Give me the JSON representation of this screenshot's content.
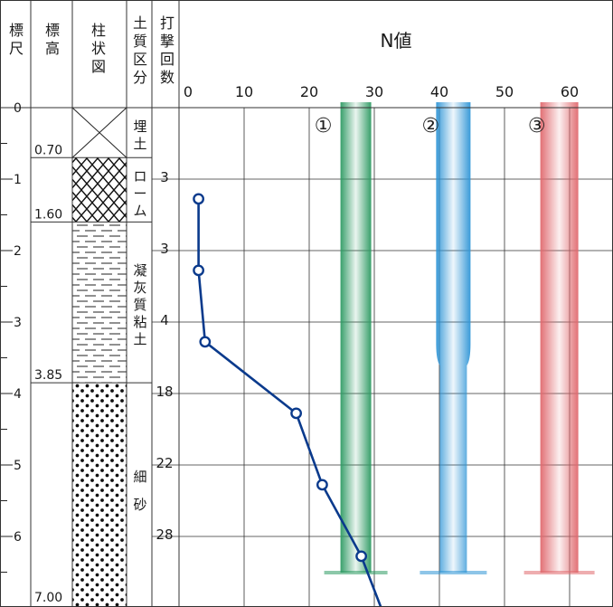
{
  "headers": {
    "scale": [
      "標",
      "尺"
    ],
    "elevation": [
      "標",
      "高"
    ],
    "column": [
      "柱",
      "状",
      "図"
    ],
    "soil_class": [
      "土",
      "質",
      "区",
      "分"
    ],
    "blow_count": [
      "打",
      "撃",
      "回",
      "数"
    ],
    "n_value": "N値"
  },
  "depth_scale": {
    "labels": [
      "0",
      "1",
      "2",
      "3",
      "4",
      "5",
      "6"
    ]
  },
  "elevations": [
    "0.70",
    "1.60",
    "3.85",
    "7.00"
  ],
  "soil_types": [
    {
      "name": "埋土",
      "chars": [
        "埋",
        "土"
      ],
      "pattern": "cross",
      "top": 0,
      "bottom": 0.7
    },
    {
      "name": "ローム",
      "chars": [
        "ロ",
        "ー",
        "ム"
      ],
      "pattern": "diamond",
      "top": 0.7,
      "bottom": 1.6
    },
    {
      "name": "凝灰質粘土",
      "chars": [
        "凝",
        "灰",
        "質",
        "粘",
        "土"
      ],
      "pattern": "dash",
      "top": 1.6,
      "bottom": 3.85
    },
    {
      "name": "細砂",
      "chars": [
        "細",
        "砂"
      ],
      "pattern": "dots",
      "top": 3.85,
      "bottom": 7.0
    }
  ],
  "chart_data": {
    "type": "line",
    "x_axis_label": "N値",
    "x_ticks": [
      0,
      10,
      20,
      30,
      40,
      50,
      60
    ],
    "xlim": [
      0,
      65
    ],
    "ylim": [
      0,
      7.0
    ],
    "y_axis": "depth",
    "blow_counts": [
      "3",
      "3",
      "4",
      "18",
      "22",
      "28"
    ],
    "series": [
      {
        "points": [
          {
            "depth": 1.15,
            "n": 3
          },
          {
            "depth": 2.15,
            "n": 3
          },
          {
            "depth": 3.15,
            "n": 4
          },
          {
            "depth": 4.15,
            "n": 18
          },
          {
            "depth": 5.15,
            "n": 22
          },
          {
            "depth": 6.15,
            "n": 28
          }
        ],
        "extends_to_depth": 7.0,
        "extends_to_n": 31,
        "color": "#0a3a8c"
      }
    ],
    "markers": [
      {
        "label": "①",
        "color": "#2e9a63"
      },
      {
        "label": "②",
        "color": "#2f95d6"
      },
      {
        "label": "③",
        "color": "#e0696e"
      }
    ]
  },
  "colors": {
    "grid": "#333333",
    "line": "#0a3a8c",
    "green": "#2e9a63",
    "blue": "#2f95d6",
    "red": "#e0696e"
  }
}
